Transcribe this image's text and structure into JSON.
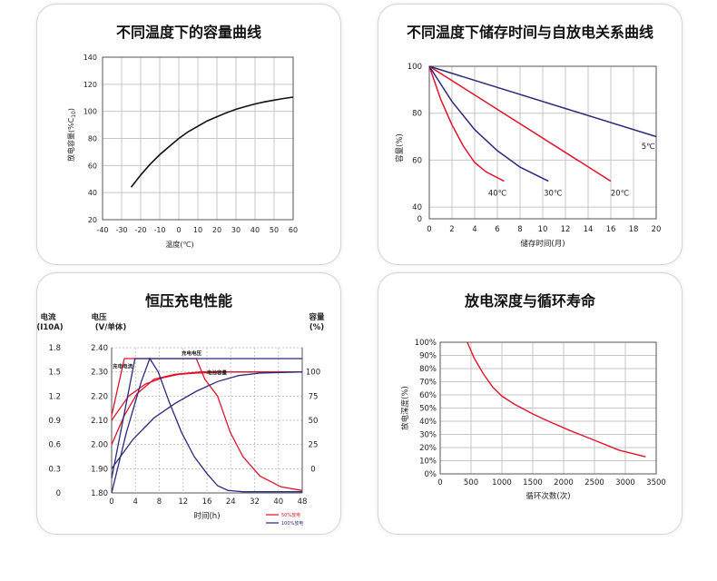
{
  "colors": {
    "red": "#e0152b",
    "navy": "#2b2a7e",
    "black": "#111111",
    "grid": "#c6c6c6"
  },
  "chart_data": [
    {
      "id": "capacity_vs_temperature",
      "type": "line",
      "title": "不同温度下的容量曲线",
      "xlabel": "温度(℃)",
      "ylabel": "放电容量(%C",
      "ylabel_sub": "10",
      "ylabel_end": ")",
      "xlim": [
        -40,
        60
      ],
      "ylim": [
        20,
        140
      ],
      "xticks": [
        -40,
        -30,
        -20,
        -10,
        0,
        10,
        20,
        30,
        40,
        50,
        60
      ],
      "yticks": [
        20,
        40,
        60,
        80,
        100,
        120,
        140
      ],
      "series": [
        {
          "color": "black",
          "x": [
            -25,
            -20,
            -15,
            -10,
            -5,
            0,
            5,
            10,
            15,
            20,
            25,
            30,
            35,
            40,
            45,
            50,
            55,
            60
          ],
          "y": [
            44,
            53,
            61,
            68,
            74,
            80,
            85,
            89,
            93,
            96,
            99,
            101.5,
            103.5,
            105.5,
            107,
            108.3,
            109.5,
            110.5
          ]
        }
      ]
    },
    {
      "id": "self_discharge",
      "type": "line",
      "title": "不同温度下储存时间与自放电关系曲线",
      "xlabel": "储存时间(月)",
      "ylabel": "容量(%)",
      "xlim": [
        0,
        20
      ],
      "ylim": [
        35,
        100
      ],
      "xticks": [
        0,
        2,
        4,
        6,
        8,
        10,
        12,
        14,
        16,
        18,
        20
      ],
      "yticks": [
        40,
        60,
        80,
        100
      ],
      "ylabel_zero": "0",
      "series": [
        {
          "name": "40℃",
          "color": "red",
          "x": [
            0,
            1,
            2,
            3,
            4,
            5,
            6.6
          ],
          "y": [
            100,
            86,
            75,
            66,
            59,
            55,
            51
          ]
        },
        {
          "name": "30℃",
          "color": "navy",
          "x": [
            0,
            2,
            4,
            6,
            8,
            10.5
          ],
          "y": [
            100,
            85,
            73,
            64,
            57,
            51
          ]
        },
        {
          "name": "20℃",
          "color": "red",
          "x": [
            0,
            16
          ],
          "y": [
            100,
            51
          ]
        },
        {
          "name": "5℃",
          "color": "navy",
          "x": [
            0,
            20
          ],
          "y": [
            100,
            70
          ]
        }
      ],
      "labels": [
        {
          "text": "40℃",
          "x": 6.0,
          "y": 46
        },
        {
          "text": "30℃",
          "x": 10.9,
          "y": 46
        },
        {
          "text": "20℃",
          "x": 16.8,
          "y": 46
        },
        {
          "text": "5℃",
          "x": 19.3,
          "y": 66
        }
      ]
    },
    {
      "id": "constant_voltage_charge",
      "type": "line",
      "title": "恒压充电性能",
      "xlabel": "时间(h)",
      "axis_titles": {
        "current": [
          "电流",
          "(I10A)"
        ],
        "voltage": [
          "电压",
          "(V/单体)"
        ],
        "capacity": [
          "容量",
          "(%)"
        ]
      },
      "current_ticks": [
        "1.8",
        "1.5",
        "1.2",
        "0.9",
        "0.6",
        "0.3",
        "0"
      ],
      "voltage_ticks": [
        "2.40",
        "2.30",
        "2.20",
        "2.10",
        "2.00",
        "1.90",
        "1.80"
      ],
      "capacity_ticks": [
        "100",
        "75",
        "50",
        "25",
        "0"
      ],
      "xticks": [
        "0",
        "4",
        "8",
        "12",
        "16",
        "24",
        "32",
        "40",
        "48"
      ],
      "xlim": [
        0,
        9
      ],
      "ylim": [
        1.8,
        2.4
      ],
      "series": [
        {
          "name": "50%放电",
          "color": "red",
          "role": "voltage",
          "x": [
            0,
            0.6,
            1.2,
            2,
            3,
            4.2,
            9
          ],
          "y": [
            2.0,
            2.12,
            2.21,
            2.27,
            2.29,
            2.3,
            2.3
          ]
        },
        {
          "name": "50%放电",
          "color": "red",
          "role": "current",
          "x": [
            0,
            0.6,
            0.8,
            4,
            4.4,
            5,
            5.6,
            6.2,
            7,
            8,
            9
          ],
          "y": [
            2.12,
            2.355,
            2.355,
            2.355,
            2.27,
            2.2,
            2.05,
            1.95,
            1.87,
            1.825,
            1.81
          ]
        },
        {
          "name": "50%放电",
          "color": "red",
          "role": "capacity",
          "x": [
            0,
            0.8,
            1.6,
            2.4,
            3.2,
            4,
            5.5,
            7,
            9
          ],
          "y": [
            2.1,
            2.2,
            2.25,
            2.275,
            2.29,
            2.295,
            2.3,
            2.3,
            2.3
          ]
        },
        {
          "name": "100%放电",
          "color": "navy",
          "role": "voltage",
          "x": [
            0,
            1,
            2,
            3,
            4,
            5,
            6,
            7,
            9
          ],
          "y": [
            1.9,
            2.02,
            2.11,
            2.17,
            2.22,
            2.26,
            2.285,
            2.295,
            2.3
          ]
        },
        {
          "name": "100%放电",
          "color": "navy",
          "role": "current",
          "x": [
            0,
            1.1,
            1.3,
            9
          ],
          "y": [
            1.86,
            2.355,
            2.355,
            2.355
          ]
        },
        {
          "name": "100%放电",
          "color": "navy",
          "role": "capacity",
          "x": [
            0,
            0.7,
            1.4,
            1.8,
            2.2,
            2.7,
            3.3,
            3.9,
            4.5,
            5,
            5.5,
            6.2,
            9
          ],
          "y": [
            1.8,
            2.05,
            2.26,
            2.355,
            2.3,
            2.18,
            2.05,
            1.95,
            1.88,
            1.83,
            1.81,
            1.805,
            1.805
          ]
        }
      ],
      "annotations": [
        {
          "text": "充电电流",
          "x": 0.05,
          "y": 2.315
        },
        {
          "text": "充电电压",
          "x": 3.3,
          "y": 2.37
        },
        {
          "text": "电池容量",
          "x": 4.5,
          "y": 2.29
        }
      ],
      "legend": [
        {
          "label": "50%放电",
          "color": "red"
        },
        {
          "label": "100%放电",
          "color": "navy"
        }
      ]
    },
    {
      "id": "cycle_life",
      "type": "line",
      "title": "放电深度与循环寿命",
      "xlabel": "循环次数(次)",
      "ylabel": "放电深度(%)",
      "xlim": [
        0,
        3500
      ],
      "ylim": [
        0,
        100
      ],
      "xticks": [
        0,
        500,
        1000,
        1500,
        2000,
        2500,
        3000,
        3500
      ],
      "yticks": [
        0,
        10,
        20,
        30,
        40,
        50,
        60,
        70,
        80,
        90,
        100
      ],
      "series": [
        {
          "color": "red",
          "x": [
            440,
            550,
            700,
            850,
            1000,
            1200,
            1500,
            1800,
            2100,
            2500,
            2900,
            3330
          ],
          "y": [
            100,
            88,
            76,
            66,
            59,
            53,
            45.5,
            39,
            33,
            25.5,
            18,
            13
          ]
        }
      ]
    }
  ]
}
